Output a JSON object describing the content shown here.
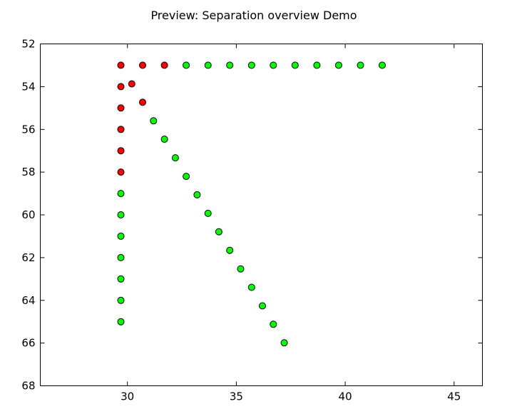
{
  "chart_data": {
    "type": "scatter",
    "title": "Preview: Separation overview Demo",
    "xlabel": "",
    "ylabel": "",
    "xlim": [
      26,
      46.3
    ],
    "ylim": [
      68,
      52
    ],
    "y_inverted": true,
    "grid": false,
    "x_ticks": [
      30,
      35,
      40,
      45
    ],
    "y_ticks": [
      52,
      54,
      56,
      58,
      60,
      62,
      64,
      66,
      68
    ],
    "x_tick_labels": [
      "30",
      "35",
      "40",
      "45"
    ],
    "y_tick_labels": [
      "52",
      "54",
      "56",
      "58",
      "60",
      "62",
      "64",
      "66",
      "68"
    ],
    "series": [
      {
        "color": "#ff0000",
        "points": [
          {
            "x": 29.7,
            "y": 53.0
          },
          {
            "x": 30.2,
            "y": 53.87
          },
          {
            "x": 30.7,
            "y": 54.73
          },
          {
            "x": 30.7,
            "y": 53.0
          },
          {
            "x": 31.7,
            "y": 53.0
          },
          {
            "x": 29.7,
            "y": 54.0
          },
          {
            "x": 29.7,
            "y": 55.0
          },
          {
            "x": 29.7,
            "y": 56.0
          },
          {
            "x": 29.7,
            "y": 57.0
          },
          {
            "x": 29.7,
            "y": 58.0
          }
        ]
      },
      {
        "color": "#00ff00",
        "points": [
          {
            "x": 32.7,
            "y": 53.0
          },
          {
            "x": 33.7,
            "y": 53.0
          },
          {
            "x": 34.7,
            "y": 53.0
          },
          {
            "x": 35.7,
            "y": 53.0
          },
          {
            "x": 36.7,
            "y": 53.0
          },
          {
            "x": 37.7,
            "y": 53.0
          },
          {
            "x": 38.7,
            "y": 53.0
          },
          {
            "x": 39.7,
            "y": 53.0
          },
          {
            "x": 40.7,
            "y": 53.0
          },
          {
            "x": 41.7,
            "y": 53.0
          },
          {
            "x": 31.2,
            "y": 55.6
          },
          {
            "x": 31.7,
            "y": 56.46
          },
          {
            "x": 32.2,
            "y": 57.33
          },
          {
            "x": 32.7,
            "y": 58.2
          },
          {
            "x": 33.2,
            "y": 59.06
          },
          {
            "x": 33.7,
            "y": 59.93
          },
          {
            "x": 34.2,
            "y": 60.79
          },
          {
            "x": 34.7,
            "y": 61.66
          },
          {
            "x": 35.2,
            "y": 62.53
          },
          {
            "x": 35.7,
            "y": 63.39
          },
          {
            "x": 36.2,
            "y": 64.26
          },
          {
            "x": 36.7,
            "y": 65.12
          },
          {
            "x": 37.2,
            "y": 65.99
          },
          {
            "x": 29.7,
            "y": 59.0
          },
          {
            "x": 29.7,
            "y": 60.0
          },
          {
            "x": 29.7,
            "y": 61.0
          },
          {
            "x": 29.7,
            "y": 62.0
          },
          {
            "x": 29.7,
            "y": 63.0
          },
          {
            "x": 29.7,
            "y": 64.0
          },
          {
            "x": 29.7,
            "y": 65.0
          }
        ]
      }
    ]
  }
}
